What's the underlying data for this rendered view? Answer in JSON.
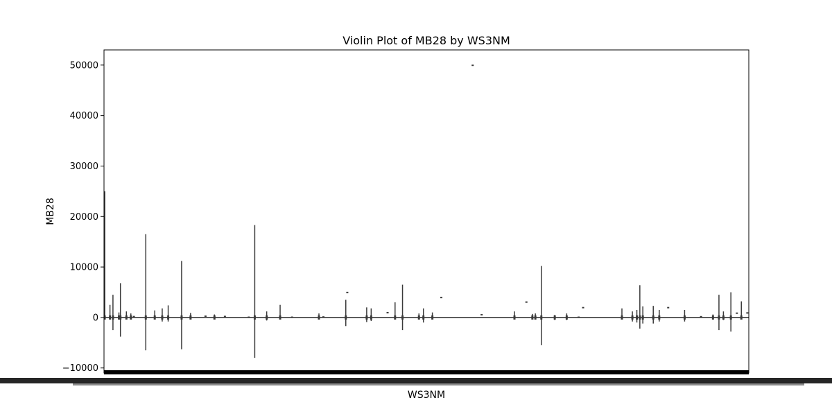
{
  "chart_data": {
    "type": "violin",
    "title": "Violin Plot of MB28 by WS3NM",
    "xlabel": "WS3NM",
    "ylabel": "MB28",
    "ylim": [
      -11000,
      53000
    ],
    "yticks": [
      -10000,
      0,
      10000,
      20000,
      30000,
      40000,
      50000
    ],
    "ytick_labels": [
      "−10000",
      "0",
      "10000",
      "20000",
      "30000",
      "40000",
      "50000"
    ],
    "category_count_note": "",
    "grid": false,
    "violins": [
      {
        "pos": 0.5,
        "min": -300,
        "max": 25000
      },
      {
        "pos": 4,
        "min": -200,
        "max": 2500
      },
      {
        "pos": 6,
        "min": -2500,
        "max": 4500
      },
      {
        "pos": 10,
        "min": -300,
        "max": 1000
      },
      {
        "pos": 11,
        "min": -3800,
        "max": 6800
      },
      {
        "pos": 15,
        "min": -300,
        "max": 1200
      },
      {
        "pos": 18,
        "min": -150,
        "max": 800
      },
      {
        "pos": 20,
        "min": -150,
        "max": 500
      },
      {
        "pos": 28,
        "min": -6500,
        "max": 16500
      },
      {
        "pos": 34,
        "min": -300,
        "max": 1400
      },
      {
        "pos": 39,
        "min": -800,
        "max": 1800
      },
      {
        "pos": 43,
        "min": -800,
        "max": 2400
      },
      {
        "pos": 52,
        "min": -6300,
        "max": 11200
      },
      {
        "pos": 58,
        "min": -100,
        "max": 900
      },
      {
        "pos": 68,
        "min": -100,
        "max": 600
      },
      {
        "pos": 74,
        "min": -300,
        "max": 600
      },
      {
        "pos": 81,
        "min": -100,
        "max": 500
      },
      {
        "pos": 97,
        "min": -200,
        "max": 300
      },
      {
        "pos": 101,
        "min": -8000,
        "max": 18300
      },
      {
        "pos": 109,
        "min": -600,
        "max": 1200
      },
      {
        "pos": 118,
        "min": -100,
        "max": 2500
      },
      {
        "pos": 126,
        "min": -300,
        "max": 400
      },
      {
        "pos": 144,
        "min": -300,
        "max": 800
      },
      {
        "pos": 147,
        "min": -300,
        "max": 500
      },
      {
        "pos": 162,
        "min": -1700,
        "max": 3500
      },
      {
        "pos": 163,
        "min": 4800,
        "max": 5100
      },
      {
        "pos": 176,
        "min": -900,
        "max": 2000
      },
      {
        "pos": 179,
        "min": -700,
        "max": 1800
      },
      {
        "pos": 190,
        "min": 800,
        "max": 1100
      },
      {
        "pos": 195,
        "min": -200,
        "max": 3000
      },
      {
        "pos": 200,
        "min": -2500,
        "max": 6500
      },
      {
        "pos": 211,
        "min": -300,
        "max": 800
      },
      {
        "pos": 214,
        "min": -1000,
        "max": 1800
      },
      {
        "pos": 220,
        "min": -200,
        "max": 1000
      },
      {
        "pos": 226,
        "min": 3800,
        "max": 4100
      },
      {
        "pos": 247,
        "min": 49800,
        "max": 50100
      },
      {
        "pos": 253,
        "min": 400,
        "max": 700
      },
      {
        "pos": 275,
        "min": -200,
        "max": 1200
      },
      {
        "pos": 283,
        "min": 2900,
        "max": 3200
      },
      {
        "pos": 287,
        "min": -200,
        "max": 700
      },
      {
        "pos": 289,
        "min": -400,
        "max": 800
      },
      {
        "pos": 293,
        "min": -5500,
        "max": 10200
      },
      {
        "pos": 302,
        "min": -500,
        "max": 500
      },
      {
        "pos": 310,
        "min": -500,
        "max": 800
      },
      {
        "pos": 318,
        "min": -300,
        "max": 400
      },
      {
        "pos": 321,
        "min": 1800,
        "max": 2100
      },
      {
        "pos": 347,
        "min": -300,
        "max": 1800
      },
      {
        "pos": 354,
        "min": -800,
        "max": 1200
      },
      {
        "pos": 357,
        "min": -1000,
        "max": 1500
      },
      {
        "pos": 359,
        "min": -2200,
        "max": 6400
      },
      {
        "pos": 361,
        "min": -1200,
        "max": 2200
      },
      {
        "pos": 368,
        "min": -1200,
        "max": 2300
      },
      {
        "pos": 372,
        "min": -800,
        "max": 1500
      },
      {
        "pos": 378,
        "min": 1800,
        "max": 2100
      },
      {
        "pos": 389,
        "min": -800,
        "max": 1500
      },
      {
        "pos": 400,
        "min": -200,
        "max": 500
      },
      {
        "pos": 408,
        "min": -400,
        "max": 600
      },
      {
        "pos": 412,
        "min": -2500,
        "max": 4500
      },
      {
        "pos": 415,
        "min": -500,
        "max": 1200
      },
      {
        "pos": 420,
        "min": -2800,
        "max": 5000
      },
      {
        "pos": 424,
        "min": 700,
        "max": 1000
      },
      {
        "pos": 427,
        "min": -300,
        "max": 3200
      },
      {
        "pos": 431,
        "min": 700,
        "max": 1100
      }
    ]
  }
}
